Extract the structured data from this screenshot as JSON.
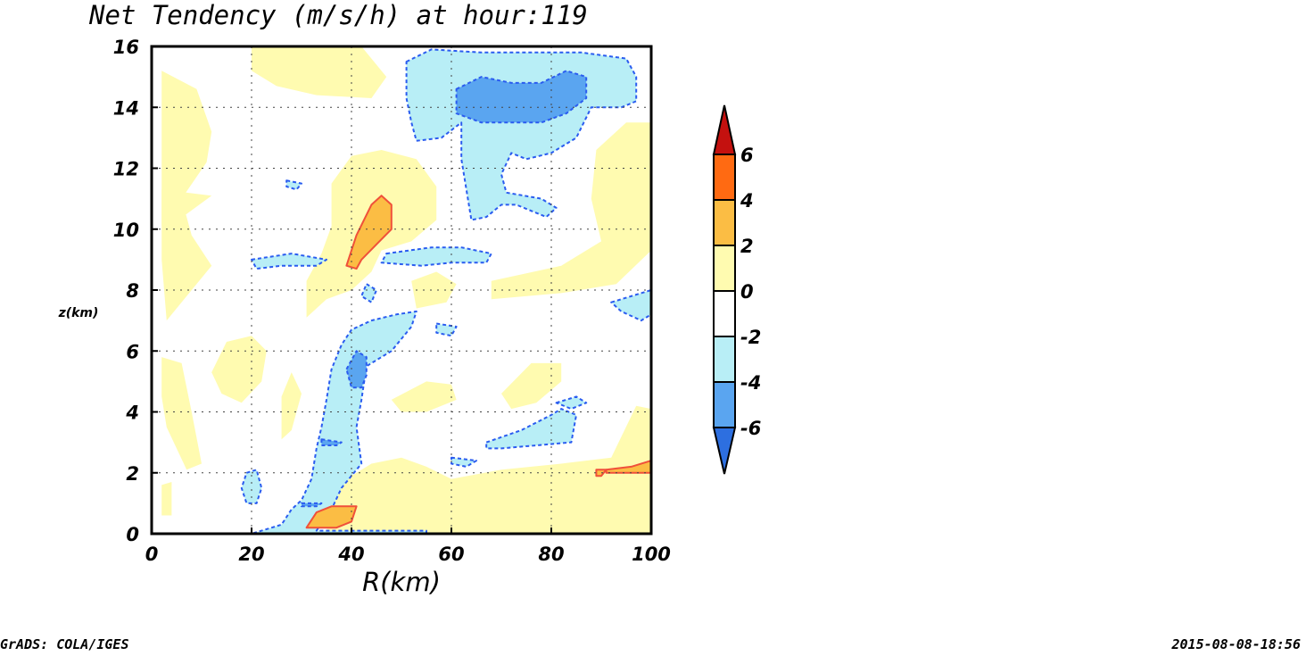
{
  "chart_data": {
    "type": "contour",
    "title": "Net Tendency (m/s/h) at hour:119",
    "xlabel": "R(km)",
    "ylabel": "z(km)",
    "xlim": [
      0,
      100
    ],
    "ylim": [
      0,
      16
    ],
    "x_ticks": [
      "0",
      "20",
      "40",
      "60",
      "80",
      "100"
    ],
    "y_ticks": [
      "0",
      "2",
      "4",
      "6",
      "8",
      "10",
      "12",
      "14",
      "16"
    ],
    "grid": true,
    "legend": "colorbar-right",
    "colorbar": {
      "levels": [
        "-6",
        "-4",
        "-2",
        "0",
        "2",
        "4",
        "6"
      ],
      "colors": [
        "#2d6fe0",
        "#5aa5f0",
        "#b8eef6",
        "#ffffff",
        "#fffbb0",
        "#fbbd44",
        "#ff6a12",
        "#c4110f"
      ]
    },
    "regions": [
      {
        "level": "0 to 2",
        "color": "#fffbb0",
        "pts": [
          [
            2,
            15.2
          ],
          [
            9,
            14.6
          ],
          [
            12,
            13.2
          ],
          [
            11,
            12.2
          ],
          [
            6,
            11
          ],
          [
            8,
            9.8
          ],
          [
            12,
            8.8
          ],
          [
            3,
            7.0
          ],
          [
            2,
            9
          ]
        ]
      },
      {
        "level": "0 to 2",
        "color": "#fffbb0",
        "pts": [
          [
            20,
            16
          ],
          [
            42,
            16
          ],
          [
            47,
            15
          ],
          [
            44,
            14.3
          ],
          [
            33,
            14.4
          ],
          [
            25,
            14.7
          ],
          [
            20,
            15.2
          ]
        ]
      },
      {
        "level": "0 to 2",
        "color": "#fffbb0",
        "pts": [
          [
            2,
            11.3
          ],
          [
            12,
            11.1
          ],
          [
            7,
            10.5
          ],
          [
            2,
            10.1
          ]
        ]
      },
      {
        "level": "0 to 2",
        "color": "#fffbb0",
        "pts": [
          [
            36,
            11.5
          ],
          [
            40,
            12.4
          ],
          [
            46,
            12.6
          ],
          [
            53,
            12.3
          ],
          [
            57,
            11.4
          ],
          [
            57,
            10.3
          ],
          [
            52,
            9.6
          ],
          [
            46,
            9.3
          ],
          [
            44,
            8.6
          ],
          [
            40,
            8.0
          ],
          [
            35,
            7.7
          ],
          [
            31,
            7.1
          ],
          [
            31,
            8.3
          ],
          [
            34,
            9.2
          ],
          [
            36,
            10.1
          ]
        ]
      },
      {
        "level": "0 to 2",
        "color": "#fffbb0",
        "pts": [
          [
            52,
            8.3
          ],
          [
            57,
            8.6
          ],
          [
            61,
            8.2
          ],
          [
            59,
            7.6
          ],
          [
            53,
            7.4
          ]
        ]
      },
      {
        "level": "0 to 2",
        "color": "#fffbb0",
        "pts": [
          [
            68,
            8.3
          ],
          [
            82,
            8.8
          ],
          [
            90,
            9.6
          ],
          [
            88,
            11.0
          ],
          [
            89,
            12.6
          ],
          [
            95,
            13.5
          ],
          [
            100,
            13.5
          ],
          [
            100,
            9.3
          ],
          [
            93,
            8.2
          ],
          [
            82,
            7.9
          ],
          [
            68,
            7.7
          ]
        ]
      },
      {
        "level": "0 to 2",
        "color": "#fffbb0",
        "pts": [
          [
            2,
            5.8
          ],
          [
            6,
            5.6
          ],
          [
            8,
            4.0
          ],
          [
            10,
            2.3
          ],
          [
            7,
            2.1
          ],
          [
            3,
            3.5
          ],
          [
            2,
            4.5
          ]
        ]
      },
      {
        "level": "0 to 2",
        "color": "#fffbb0",
        "pts": [
          [
            12,
            5.3
          ],
          [
            15,
            6.3
          ],
          [
            20,
            6.5
          ],
          [
            23,
            6.0
          ],
          [
            22,
            5.0
          ],
          [
            18,
            4.3
          ],
          [
            14,
            4.6
          ]
        ]
      },
      {
        "level": "0 to 2",
        "color": "#fffbb0",
        "pts": [
          [
            26,
            4.5
          ],
          [
            28,
            5.3
          ],
          [
            30,
            4.6
          ],
          [
            28,
            3.4
          ],
          [
            26,
            3.1
          ]
        ]
      },
      {
        "level": "0 to 2",
        "color": "#fffbb0",
        "pts": [
          [
            48,
            4.4
          ],
          [
            55,
            5.0
          ],
          [
            60,
            4.9
          ],
          [
            61,
            4.4
          ],
          [
            55,
            4.0
          ],
          [
            50,
            4.0
          ]
        ]
      },
      {
        "level": "0 to 2",
        "color": "#fffbb0",
        "pts": [
          [
            70,
            4.6
          ],
          [
            76,
            5.6
          ],
          [
            82,
            5.6
          ],
          [
            82,
            5.0
          ],
          [
            77,
            4.3
          ],
          [
            72,
            4.1
          ]
        ]
      },
      {
        "level": "0 to 2",
        "color": "#fffbb0",
        "pts": [
          [
            2,
            1.6
          ],
          [
            4,
            1.7
          ],
          [
            4,
            0.6
          ],
          [
            2,
            0.6
          ]
        ]
      },
      {
        "level": "0 to 2",
        "color": "#fffbb0",
        "pts": [
          [
            35,
            0
          ],
          [
            100,
            0
          ],
          [
            100,
            4.1
          ],
          [
            97,
            4.2
          ],
          [
            92,
            2.5
          ],
          [
            82,
            2.3
          ],
          [
            70,
            2.1
          ],
          [
            60,
            1.8
          ],
          [
            55,
            2.2
          ],
          [
            50,
            2.5
          ],
          [
            44,
            2.3
          ],
          [
            40,
            1.9
          ],
          [
            36,
            1.4
          ]
        ]
      },
      {
        "level": "-4 to -2",
        "color": "#b8eef6",
        "pts": [
          [
            51,
            15.5
          ],
          [
            56,
            15.9
          ],
          [
            66,
            15.8
          ],
          [
            75,
            15.8
          ],
          [
            86,
            15.8
          ],
          [
            95,
            15.6
          ],
          [
            97,
            15.0
          ],
          [
            97,
            14.2
          ],
          [
            94,
            14.0
          ],
          [
            88,
            14.0
          ],
          [
            85,
            13.0
          ],
          [
            80,
            12.5
          ],
          [
            75,
            12.3
          ],
          [
            72,
            12.5
          ],
          [
            70,
            11.8
          ],
          [
            71,
            11.2
          ],
          [
            78,
            11.0
          ],
          [
            81,
            10.7
          ],
          [
            79,
            10.4
          ],
          [
            73,
            10.8
          ],
          [
            70,
            10.8
          ],
          [
            67,
            10.4
          ],
          [
            64,
            10.3
          ],
          [
            63,
            11.3
          ],
          [
            62,
            12.3
          ],
          [
            62,
            13.5
          ],
          [
            58,
            13.0
          ],
          [
            53,
            12.9
          ],
          [
            52,
            13.5
          ],
          [
            51,
            14.3
          ]
        ]
      },
      {
        "level": "-4 to -2",
        "color": "#b8eef6",
        "pts": [
          [
            20,
            9.0
          ],
          [
            28,
            9.2
          ],
          [
            35,
            9.0
          ],
          [
            33,
            8.8
          ],
          [
            26,
            8.8
          ],
          [
            21,
            8.7
          ]
        ]
      },
      {
        "level": "-4 to -2",
        "color": "#b8eef6",
        "pts": [
          [
            47,
            9.2
          ],
          [
            56,
            9.4
          ],
          [
            62,
            9.4
          ],
          [
            68,
            9.2
          ],
          [
            67,
            8.9
          ],
          [
            60,
            8.9
          ],
          [
            54,
            8.8
          ],
          [
            46,
            8.9
          ]
        ]
      },
      {
        "level": "-4 to -2",
        "color": "#b8eef6",
        "pts": [
          [
            27,
            11.6
          ],
          [
            30,
            11.5
          ],
          [
            29,
            11.3
          ],
          [
            27,
            11.4
          ]
        ]
      },
      {
        "level": "-4 to -2",
        "color": "#b8eef6",
        "pts": [
          [
            43,
            8.2
          ],
          [
            45,
            8.0
          ],
          [
            44,
            7.6
          ],
          [
            42,
            7.8
          ]
        ]
      },
      {
        "level": "-4 to -2",
        "color": "#b8eef6",
        "pts": [
          [
            57,
            6.9
          ],
          [
            61,
            6.8
          ],
          [
            60,
            6.5
          ],
          [
            57,
            6.6
          ]
        ]
      },
      {
        "level": "-4 to -2",
        "color": "#b8eef6",
        "pts": [
          [
            92,
            7.6
          ],
          [
            100,
            8.0
          ],
          [
            100,
            7.2
          ],
          [
            98,
            7.0
          ],
          [
            94,
            7.3
          ]
        ]
      },
      {
        "level": "-4 to -2",
        "color": "#b8eef6",
        "pts": [
          [
            20,
            0
          ],
          [
            55,
            0
          ],
          [
            55,
            0.1
          ],
          [
            33,
            0.1
          ],
          [
            36,
            0.8
          ],
          [
            38,
            1.5
          ],
          [
            42,
            2.3
          ],
          [
            41,
            3.5
          ],
          [
            42,
            4.4
          ],
          [
            43,
            5.5
          ],
          [
            48,
            6.0
          ],
          [
            52,
            6.8
          ],
          [
            53,
            7.3
          ],
          [
            49,
            7.2
          ],
          [
            44,
            7.0
          ],
          [
            40,
            6.7
          ],
          [
            38,
            6.2
          ],
          [
            36,
            5.4
          ],
          [
            35,
            4.4
          ],
          [
            34,
            3.5
          ],
          [
            33,
            2.8
          ],
          [
            32,
            1.8
          ],
          [
            30,
            1.1
          ],
          [
            28,
            0.8
          ],
          [
            26,
            0.3
          ]
        ]
      },
      {
        "level": "-4 to -2",
        "color": "#b8eef6",
        "pts": [
          [
            67,
            3.0
          ],
          [
            74,
            3.4
          ],
          [
            80,
            3.9
          ],
          [
            82,
            4.1
          ],
          [
            85,
            3.9
          ],
          [
            84,
            3.0
          ],
          [
            77,
            2.9
          ],
          [
            70,
            2.8
          ],
          [
            67,
            2.8
          ]
        ]
      },
      {
        "level": "-4 to -2",
        "color": "#b8eef6",
        "pts": [
          [
            60,
            2.5
          ],
          [
            65,
            2.4
          ],
          [
            63,
            2.2
          ],
          [
            60,
            2.3
          ]
        ]
      },
      {
        "level": "-4 to -2",
        "color": "#b8eef6",
        "pts": [
          [
            81,
            4.3
          ],
          [
            85,
            4.5
          ],
          [
            87,
            4.3
          ],
          [
            84,
            4.1
          ]
        ]
      },
      {
        "level": "-4 to -2",
        "color": "#b8eef6",
        "pts": [
          [
            19,
            2.0
          ],
          [
            21,
            2.1
          ],
          [
            22,
            1.5
          ],
          [
            21,
            1.0
          ],
          [
            19,
            1.0
          ],
          [
            18,
            1.5
          ]
        ]
      },
      {
        "level": "-6 to -4",
        "color": "#5aa5f0",
        "pts": [
          [
            61,
            14.6
          ],
          [
            66,
            15.0
          ],
          [
            72,
            14.8
          ],
          [
            78,
            14.8
          ],
          [
            83,
            15.2
          ],
          [
            87,
            15.0
          ],
          [
            87,
            14.3
          ],
          [
            83,
            13.8
          ],
          [
            78,
            13.5
          ],
          [
            72,
            13.5
          ],
          [
            66,
            13.5
          ],
          [
            61,
            13.8
          ]
        ]
      },
      {
        "level": "-6 to -4",
        "color": "#5aa5f0",
        "pts": [
          [
            39,
            5.4
          ],
          [
            41,
            6.0
          ],
          [
            43,
            5.8
          ],
          [
            43,
            5.2
          ],
          [
            42,
            4.8
          ],
          [
            40,
            4.8
          ]
        ]
      },
      {
        "level": "-6 to -4",
        "color": "#5aa5f0",
        "pts": [
          [
            34,
            3.1
          ],
          [
            38,
            3.0
          ],
          [
            37,
            2.9
          ],
          [
            34,
            2.9
          ]
        ]
      },
      {
        "level": "-6 to -4",
        "color": "#5aa5f0",
        "pts": [
          [
            30,
            1.0
          ],
          [
            34,
            1.0
          ],
          [
            33,
            0.9
          ],
          [
            30,
            0.9
          ]
        ]
      },
      {
        "level": "2 to 4",
        "color": "#fbbd44",
        "pts": [
          [
            41,
            9.8
          ],
          [
            44,
            10.8
          ],
          [
            46,
            11.1
          ],
          [
            48,
            10.8
          ],
          [
            48,
            10.0
          ],
          [
            45,
            9.5
          ],
          [
            42,
            9.0
          ],
          [
            41,
            8.7
          ],
          [
            39,
            8.8
          ],
          [
            40,
            9.3
          ]
        ]
      },
      {
        "level": "2 to 4",
        "color": "#fbbd44",
        "pts": [
          [
            31,
            0.2
          ],
          [
            33,
            0.7
          ],
          [
            36,
            0.9
          ],
          [
            41,
            0.9
          ],
          [
            40,
            0.4
          ],
          [
            37,
            0.2
          ]
        ]
      },
      {
        "level": "2 to 4",
        "color": "#fbbd44",
        "pts": [
          [
            91,
            2.1
          ],
          [
            96,
            2.2
          ],
          [
            100,
            2.4
          ],
          [
            100,
            2.0
          ],
          [
            95,
            2.0
          ],
          [
            91,
            2.0
          ]
        ]
      },
      {
        "level": "2 to 4",
        "color": "#fbbd44",
        "pts": [
          [
            89,
            2.1
          ],
          [
            91,
            2.1
          ],
          [
            90,
            1.9
          ],
          [
            89,
            1.9
          ]
        ]
      }
    ],
    "footer_left": "GrADS: COLA/IGES",
    "footer_right": "2015-08-08-18:56"
  }
}
